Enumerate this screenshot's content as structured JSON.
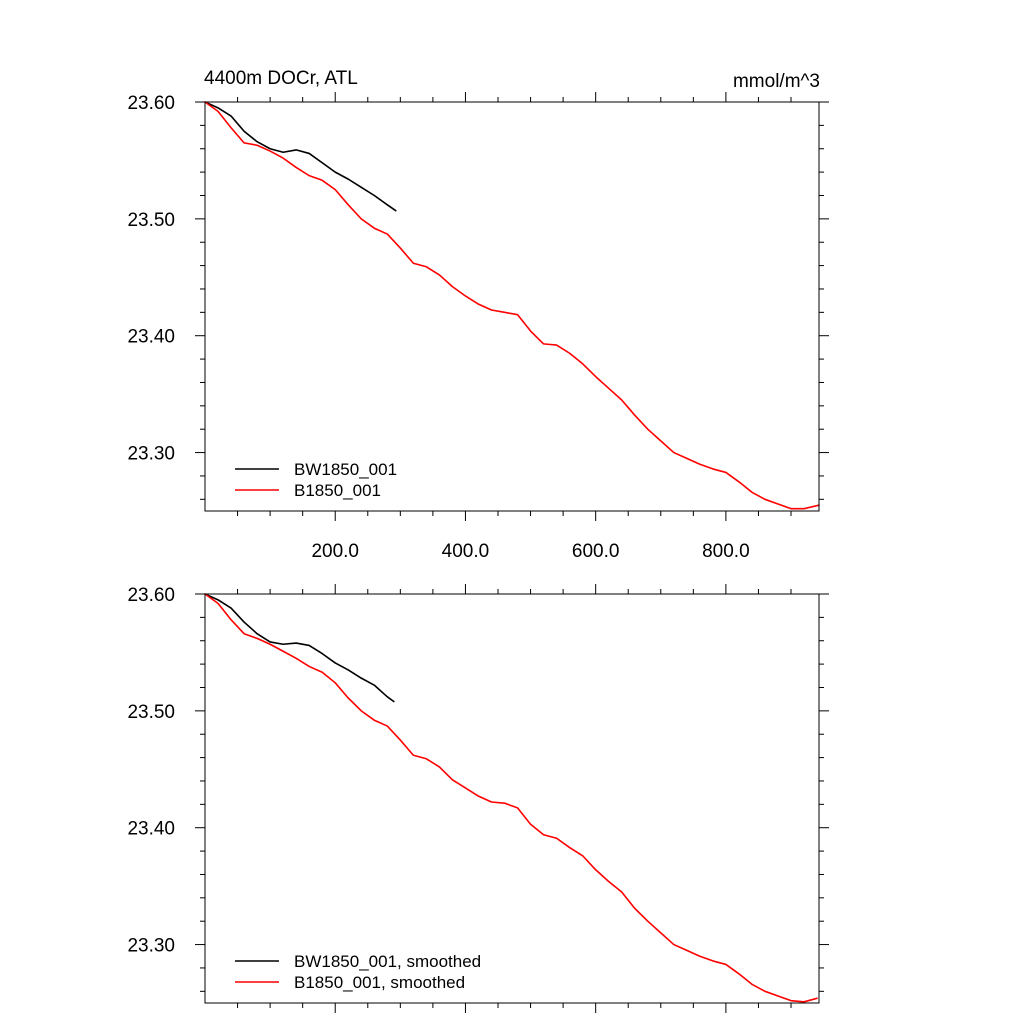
{
  "chart_data": [
    {
      "type": "line",
      "title": "4400m DOCr, ATL",
      "units": "mmol/m^3",
      "xlim": [
        0,
        943
      ],
      "ylim": [
        23.25,
        23.6
      ],
      "xticks": [
        200,
        400,
        600,
        800
      ],
      "xtick_labels": [
        "200.0",
        "400.0",
        "600.0",
        "800.0"
      ],
      "yticks": [
        23.3,
        23.4,
        23.5,
        23.6
      ],
      "ytick_labels": [
        "23.30",
        "23.40",
        "23.50",
        "23.60"
      ],
      "legend_position": "bottom-left",
      "series": [
        {
          "name": "BW1850_001",
          "color": "#000000",
          "x": [
            0,
            20,
            40,
            60,
            80,
            100,
            120,
            140,
            160,
            180,
            200,
            220,
            240,
            260,
            280,
            293
          ],
          "y": [
            23.6,
            23.595,
            23.588,
            23.575,
            23.566,
            23.56,
            23.557,
            23.559,
            23.556,
            23.548,
            23.54,
            23.534,
            23.527,
            23.52,
            23.512,
            23.507
          ]
        },
        {
          "name": "B1850_001",
          "color": "#ff0000",
          "x": [
            0,
            20,
            40,
            60,
            80,
            100,
            120,
            140,
            160,
            180,
            200,
            220,
            240,
            260,
            280,
            300,
            320,
            340,
            360,
            380,
            400,
            420,
            440,
            460,
            480,
            500,
            520,
            540,
            560,
            580,
            600,
            620,
            640,
            660,
            680,
            700,
            720,
            740,
            760,
            780,
            800,
            820,
            840,
            860,
            880,
            900,
            920,
            943
          ],
          "y": [
            23.6,
            23.592,
            23.578,
            23.565,
            23.563,
            23.558,
            23.552,
            23.544,
            23.537,
            23.533,
            23.525,
            23.512,
            23.5,
            23.492,
            23.487,
            23.475,
            23.462,
            23.459,
            23.452,
            23.442,
            23.434,
            23.427,
            23.422,
            23.42,
            23.418,
            23.404,
            23.393,
            23.392,
            23.385,
            23.376,
            23.365,
            23.355,
            23.345,
            23.332,
            23.32,
            23.31,
            23.3,
            23.295,
            23.29,
            23.286,
            23.283,
            23.275,
            23.266,
            23.26,
            23.256,
            23.252,
            23.252,
            23.255
          ]
        }
      ]
    },
    {
      "type": "line",
      "xlim": [
        0,
        943
      ],
      "ylim": [
        23.25,
        23.6
      ],
      "yticks": [
        23.3,
        23.4,
        23.5,
        23.6
      ],
      "ytick_labels": [
        "23.30",
        "23.40",
        "23.50",
        "23.60"
      ],
      "xticks": [
        200,
        400,
        600,
        800
      ],
      "legend_position": "bottom-left",
      "series": [
        {
          "name": "BW1850_001, smoothed",
          "color": "#000000",
          "x": [
            0,
            20,
            40,
            60,
            80,
            100,
            120,
            140,
            160,
            180,
            200,
            220,
            240,
            260,
            280,
            290
          ],
          "y": [
            23.6,
            23.595,
            23.588,
            23.576,
            23.566,
            23.559,
            23.557,
            23.558,
            23.556,
            23.549,
            23.541,
            23.535,
            23.528,
            23.522,
            23.512,
            23.508
          ]
        },
        {
          "name": "B1850_001, smoothed",
          "color": "#ff0000",
          "x": [
            0,
            20,
            40,
            60,
            80,
            100,
            120,
            140,
            160,
            180,
            200,
            220,
            240,
            260,
            280,
            300,
            320,
            340,
            360,
            380,
            400,
            420,
            440,
            460,
            480,
            500,
            520,
            540,
            560,
            580,
            600,
            620,
            640,
            660,
            680,
            700,
            720,
            740,
            760,
            780,
            800,
            820,
            840,
            860,
            880,
            900,
            920,
            940
          ],
          "y": [
            23.6,
            23.592,
            23.578,
            23.566,
            23.562,
            23.557,
            23.551,
            23.545,
            23.538,
            23.533,
            23.524,
            23.511,
            23.5,
            23.492,
            23.487,
            23.475,
            23.462,
            23.459,
            23.452,
            23.441,
            23.434,
            23.427,
            23.422,
            23.421,
            23.417,
            23.403,
            23.394,
            23.391,
            23.383,
            23.376,
            23.364,
            23.354,
            23.345,
            23.331,
            23.32,
            23.31,
            23.3,
            23.295,
            23.29,
            23.286,
            23.283,
            23.275,
            23.266,
            23.26,
            23.256,
            23.252,
            23.251,
            23.254
          ]
        }
      ]
    }
  ]
}
